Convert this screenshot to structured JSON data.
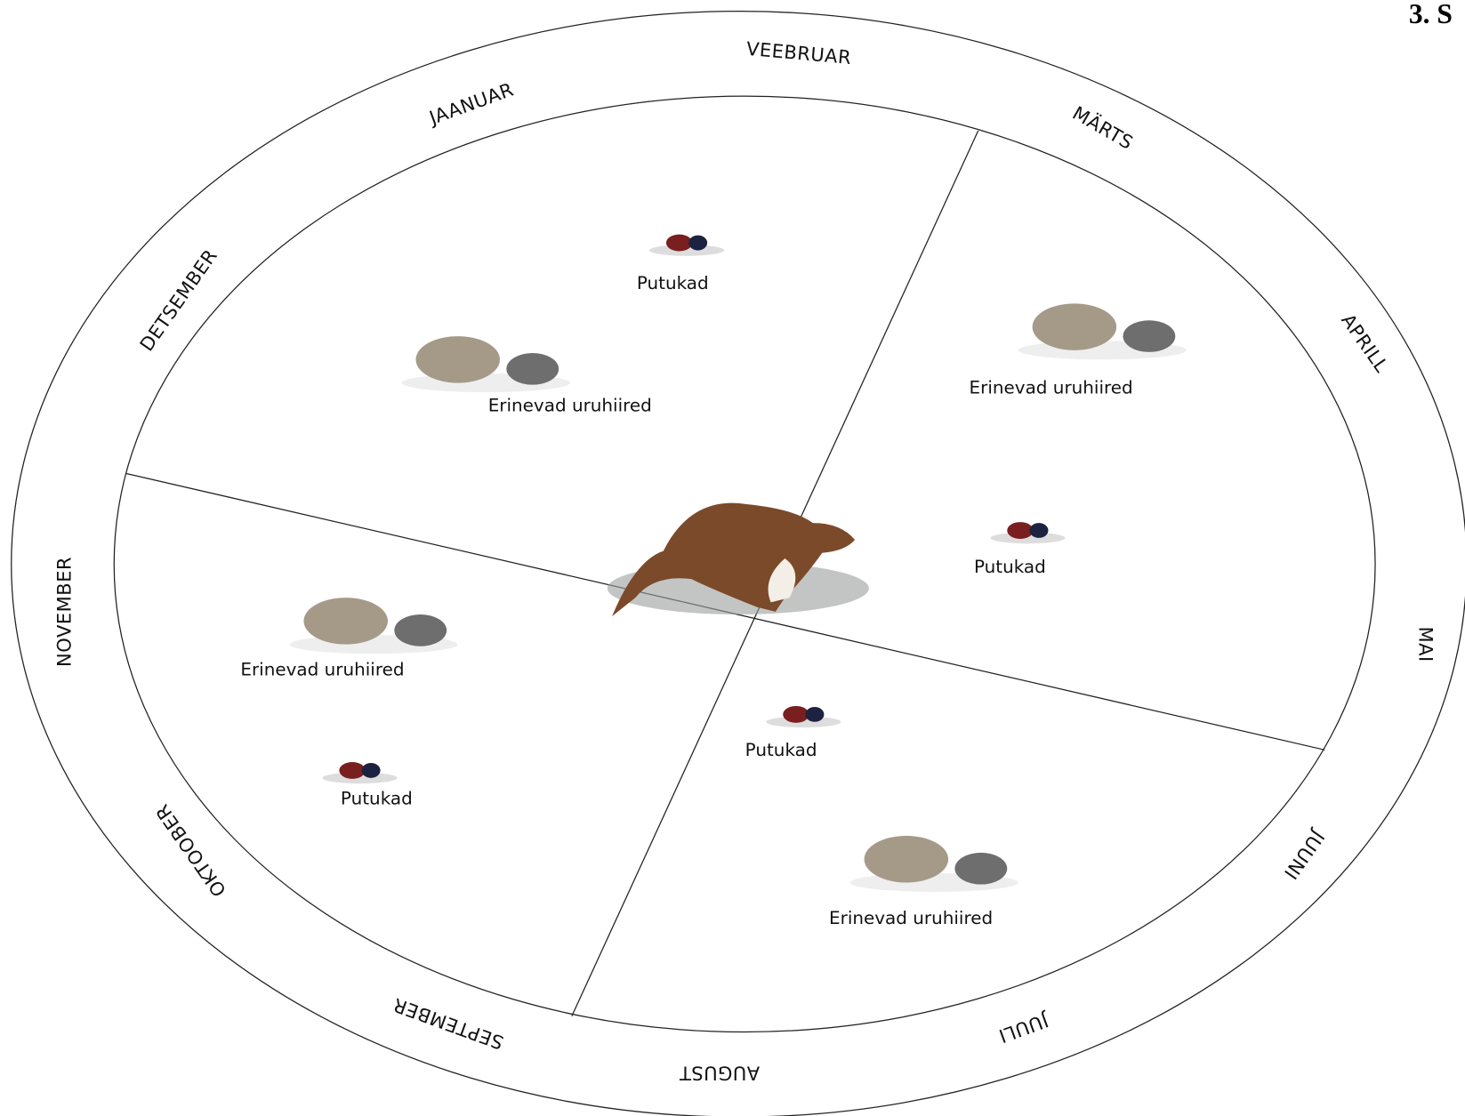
{
  "header": {
    "title": "3. S"
  },
  "months": [
    "JAANUAR",
    "VEEBRUAR",
    "MÄRTS",
    "APRILL",
    "MAI",
    "JUUNI",
    "JUULI",
    "AUGUST",
    "SEPTEMBER",
    "OKTOOBER",
    "NOVEMBER",
    "DETSEMBER"
  ],
  "items": [
    {
      "label": "Putukad"
    },
    {
      "label": "Erinevad uruhiired"
    },
    {
      "label": "Erinevad uruhiired"
    },
    {
      "label": "Putukad"
    },
    {
      "label": "Erinevad uruhiired"
    },
    {
      "label": "Putukad"
    },
    {
      "label": "Putukad"
    },
    {
      "label": "Erinevad uruhiired"
    }
  ]
}
